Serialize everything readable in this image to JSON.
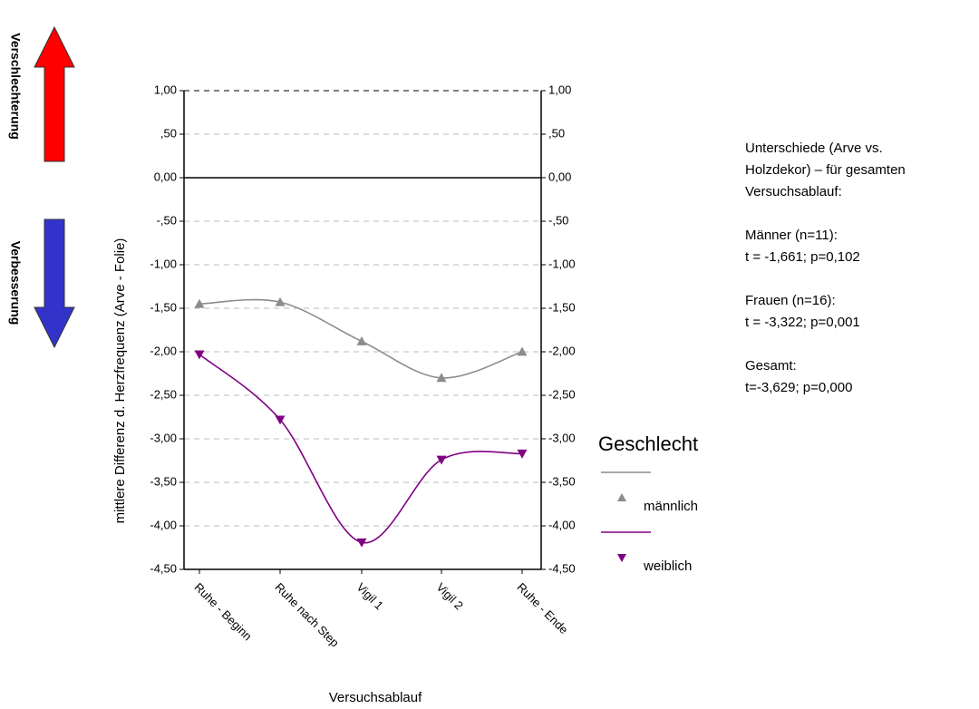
{
  "chart_data": {
    "type": "line",
    "x_label": "Versuchsablauf",
    "y_label": "mittlere Differenz d. Herzfrequenz (Arve - Folie)",
    "categories": [
      "Ruhe - Beginn",
      "Ruhe nach Step",
      "Vigil 1",
      "Vigil 2",
      "Ruhe - Ende"
    ],
    "series": [
      {
        "name": "männlich",
        "color": "#8c8c8c",
        "marker": "triangle-up",
        "values": [
          -1.45,
          -1.43,
          -1.88,
          -2.3,
          -2.0
        ]
      },
      {
        "name": "weiblich",
        "color": "#800080",
        "marker": "triangle-down",
        "values": [
          -2.03,
          -2.78,
          -4.19,
          -3.24,
          -3.17
        ]
      }
    ],
    "smooth": true,
    "ylim": [
      -4.5,
      1.0
    ],
    "yticks": [
      {
        "value": 1.0,
        "label": "1,00"
      },
      {
        "value": 0.5,
        "label": ",50"
      },
      {
        "value": 0.0,
        "label": "0,00"
      },
      {
        "value": -0.5,
        "label": "-,50"
      },
      {
        "value": -1.0,
        "label": "-1,00"
      },
      {
        "value": -1.5,
        "label": "-1,50"
      },
      {
        "value": -2.0,
        "label": "-2,00"
      },
      {
        "value": -2.5,
        "label": "-2,50"
      },
      {
        "value": -3.0,
        "label": "-3,00"
      },
      {
        "value": -3.5,
        "label": "-3,50"
      },
      {
        "value": -4.0,
        "label": "-4,00"
      },
      {
        "value": -4.5,
        "label": "-4,50"
      }
    ],
    "grid": true,
    "legend_title": "Geschlecht",
    "arrow_labels": [
      "Verschlechterung",
      "Verbesserung"
    ],
    "annotation": [
      [
        "Unterschiede (Arve vs.",
        "Holzdekor) – für gesamten",
        "Versuchsablauf:"
      ],
      [
        "Männer (n=11):",
        "t = -1,661; p=0,102"
      ],
      [
        "Frauen (n=16):",
        "t = -3,322; p=0,001"
      ],
      [
        "Gesamt:",
        "t=-3,629; p=0,000"
      ]
    ]
  }
}
